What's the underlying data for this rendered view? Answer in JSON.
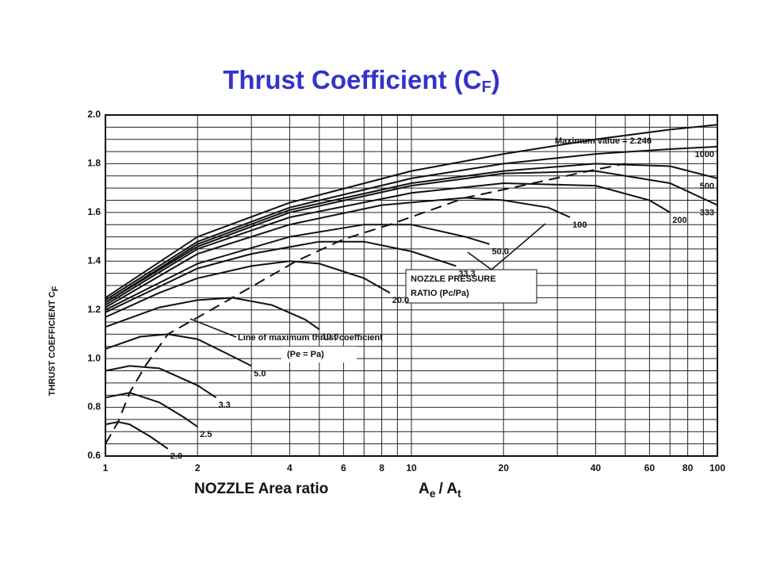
{
  "chart_data": {
    "type": "line",
    "title": "Thrust Coefficient (C",
    "title_subscript": "F",
    "title_suffix": ")",
    "y_label": "THRUST COEFFICIENT C",
    "y_label_subscript": "F",
    "x_label": "NOZZLE Area ratio",
    "x_label_ratio": [
      "A",
      "e",
      "/ A",
      "t"
    ],
    "log_x": true,
    "grid": true,
    "color": "#111111",
    "xlim": [
      1,
      100
    ],
    "xticks": [
      1,
      2,
      4,
      6,
      8,
      10,
      20,
      40,
      60,
      80,
      100
    ],
    "x_minor_ticks": [
      3,
      5,
      7,
      9,
      30,
      50,
      70,
      90
    ],
    "ylim": [
      0.6,
      2.0
    ],
    "yticks": [
      {
        "value": 0.6,
        "label": "0.6"
      },
      {
        "value": 0.8,
        "label": "0.8"
      },
      {
        "value": 1.0,
        "label": "1.0"
      },
      {
        "value": 1.2,
        "label": "1.2"
      },
      {
        "value": 1.4,
        "label": "1.4"
      },
      {
        "value": 1.6,
        "label": "1.6"
      },
      {
        "value": 1.8,
        "label": "1.8"
      },
      {
        "value": 2.0,
        "label": "2.0"
      }
    ],
    "y_minor_ticks": [
      0.65,
      0.7,
      0.75,
      0.85,
      0.9,
      0.95,
      1.05,
      1.1,
      1.15,
      1.25,
      1.3,
      1.35,
      1.45,
      1.5,
      1.55,
      1.65,
      1.7,
      1.75,
      1.85,
      1.9,
      1.95
    ],
    "annotations": {
      "pressure_ratio": [
        "NOZZLE PRESSURE",
        "RATIO (Pc/Pa)"
      ],
      "optimum": "(Pe = Pa)"
    },
    "series": [
      {
        "name": "2.0",
        "x": [
          1,
          1.1,
          1.2,
          1.4,
          1.6
        ],
        "values": [
          0.73,
          0.74,
          0.73,
          0.68,
          0.63
        ]
      },
      {
        "name": "2.5",
        "x": [
          1,
          1.2,
          1.5,
          1.8,
          2
        ],
        "values": [
          0.84,
          0.86,
          0.82,
          0.76,
          0.72
        ]
      },
      {
        "name": "3.3",
        "x": [
          1,
          1.2,
          1.5,
          2,
          2.3
        ],
        "values": [
          0.95,
          0.97,
          0.96,
          0.89,
          0.84
        ]
      },
      {
        "name": "5.0",
        "x": [
          1,
          1.3,
          1.6,
          2,
          2.5,
          3
        ],
        "values": [
          1.04,
          1.09,
          1.1,
          1.08,
          1.02,
          0.97
        ]
      },
      {
        "name": "10.0",
        "x": [
          1,
          1.5,
          2,
          2.6,
          3.5,
          4.5,
          5
        ],
        "values": [
          1.13,
          1.21,
          1.24,
          1.25,
          1.22,
          1.16,
          1.12
        ]
      },
      {
        "name": "20.0",
        "x": [
          1,
          1.5,
          2,
          3,
          4,
          5,
          7,
          8.5
        ],
        "values": [
          1.17,
          1.27,
          1.33,
          1.38,
          1.4,
          1.39,
          1.33,
          1.27
        ]
      },
      {
        "name": "33.3",
        "x": [
          1,
          2,
          3,
          5,
          7,
          10,
          14
        ],
        "values": [
          1.19,
          1.37,
          1.43,
          1.48,
          1.48,
          1.44,
          1.38
        ]
      },
      {
        "name": "50.0",
        "x": [
          1,
          2,
          4,
          7,
          10,
          15,
          18
        ],
        "values": [
          1.2,
          1.39,
          1.5,
          1.55,
          1.55,
          1.5,
          1.47
        ]
      },
      {
        "name": "100",
        "x": [
          1,
          2,
          4,
          8,
          15,
          20,
          28,
          33
        ],
        "values": [
          1.21,
          1.43,
          1.55,
          1.63,
          1.66,
          1.65,
          1.62,
          1.58
        ]
      },
      {
        "name": "200",
        "x": [
          1,
          2,
          4,
          10,
          20,
          40,
          60,
          70
        ],
        "values": [
          1.22,
          1.45,
          1.58,
          1.68,
          1.72,
          1.71,
          1.65,
          1.6
        ]
      },
      {
        "name": "333",
        "x": [
          1,
          2,
          4,
          10,
          20,
          40,
          70,
          100
        ],
        "values": [
          1.23,
          1.46,
          1.6,
          1.71,
          1.76,
          1.77,
          1.72,
          1.63
        ]
      },
      {
        "name": "500",
        "x": [
          1,
          2,
          4,
          10,
          20,
          40,
          70,
          100
        ],
        "values": [
          1.23,
          1.47,
          1.61,
          1.72,
          1.77,
          1.8,
          1.79,
          1.74
        ]
      },
      {
        "name": "1000",
        "x": [
          1,
          2,
          4,
          10,
          20,
          40,
          70,
          100
        ],
        "values": [
          1.24,
          1.48,
          1.62,
          1.74,
          1.8,
          1.84,
          1.86,
          1.87
        ]
      },
      {
        "name": "Maximum value = 2.246",
        "x": [
          1,
          2,
          4,
          10,
          20,
          40,
          70,
          100
        ],
        "values": [
          1.25,
          1.5,
          1.64,
          1.77,
          1.84,
          1.9,
          1.94,
          1.96
        ]
      },
      {
        "name": "Line of maximum thrust coefficient",
        "dash": true,
        "x": [
          1,
          1.1,
          1.2,
          1.35,
          1.6,
          2.6,
          4.2,
          6,
          8.5,
          15,
          25,
          38,
          50
        ],
        "values": [
          0.65,
          0.74,
          0.86,
          0.97,
          1.1,
          1.25,
          1.4,
          1.49,
          1.55,
          1.66,
          1.72,
          1.77,
          1.8
        ]
      }
    ]
  }
}
